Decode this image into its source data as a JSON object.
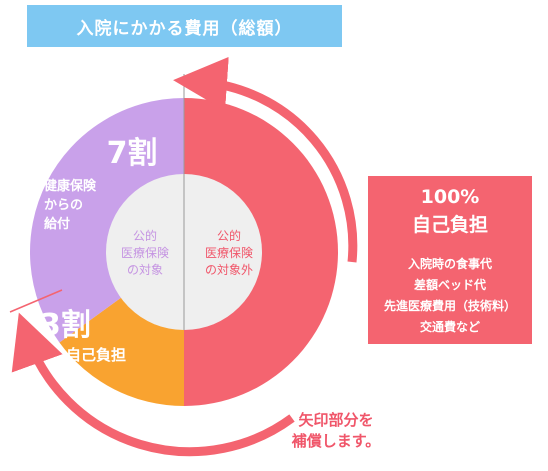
{
  "title": "入院にかかる費用（総額）",
  "chart_data": {
    "type": "pie",
    "slices": [
      {
        "label": "7割",
        "value": 7,
        "segment": "健康保険からの給付",
        "color": "#c9a1ea"
      },
      {
        "label": "3割",
        "value": 3,
        "segment": "自己負担",
        "color": "#f9a330"
      },
      {
        "label": "100%",
        "value": 10,
        "segment": "自己負担",
        "color": "#f46470"
      }
    ],
    "inner": [
      {
        "text_lines": [
          "公的",
          "医療保険",
          "の対象"
        ],
        "color": "#c594e2"
      },
      {
        "text_lines": [
          "公的",
          "医療保険",
          "の対象外"
        ],
        "color": "#f0566a"
      }
    ]
  },
  "left": {
    "percent": "7割",
    "label_lines": [
      "健康保険",
      "からの",
      "給付"
    ]
  },
  "bottom": {
    "percent": "3割",
    "label": "自己負担"
  },
  "right_box": {
    "percent": "100%",
    "label": "自己負担",
    "items": [
      "入院時の食事代",
      "差額ベッド代",
      "先進医療費用（技術料）",
      "交通費など"
    ]
  },
  "note_lines": [
    "矢印部分を",
    "補償します。"
  ],
  "colors": {
    "title_bg": "#7ec8f2",
    "covered": "#c9a1ea",
    "self_pay": "#f9a330",
    "uncovered": "#f46470",
    "inner_circle": "#efefef",
    "arrow": "#f46470"
  }
}
